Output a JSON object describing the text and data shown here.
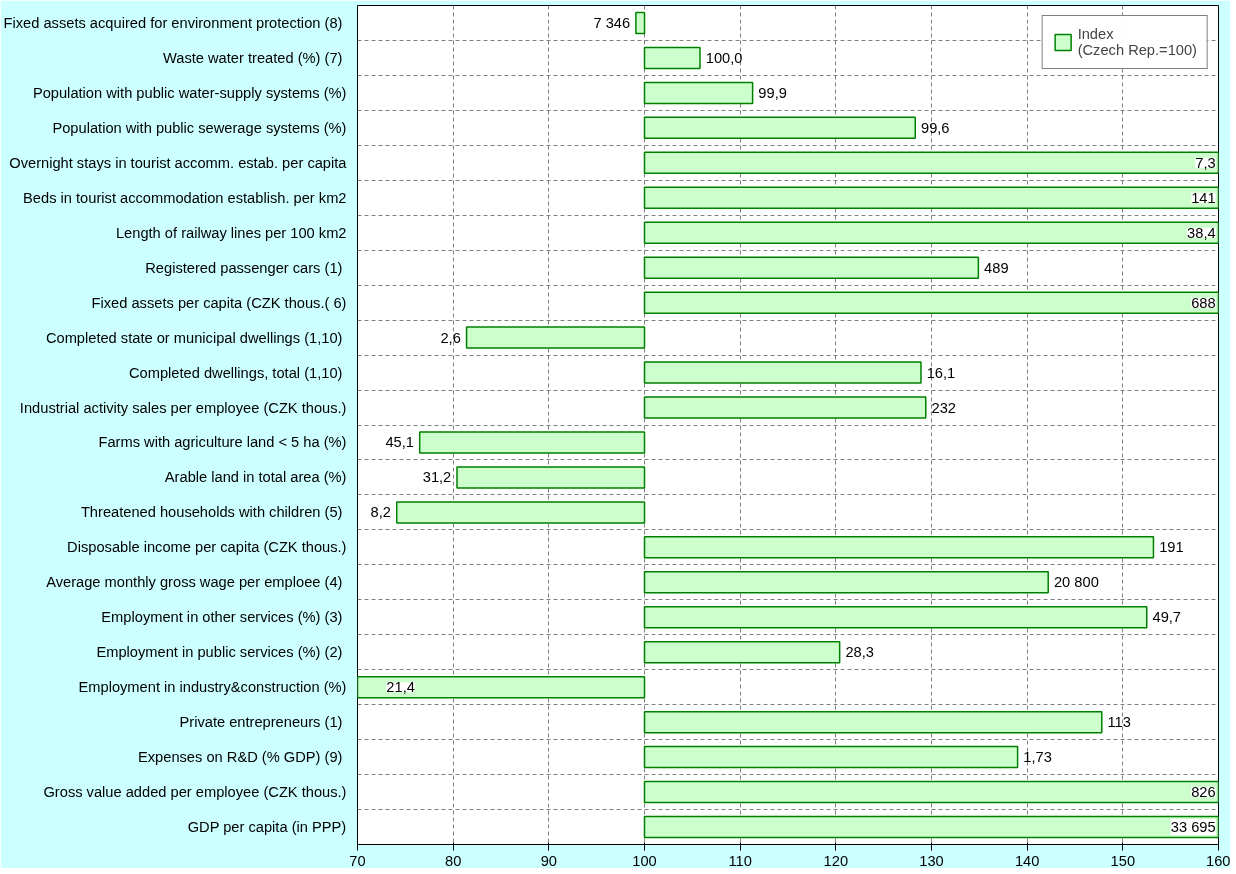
{
  "chart_data": {
    "type": "bar",
    "orientation": "horizontal",
    "categories": [
      "Fixed assets acquired for environment protection  (8)",
      "Waste water treated (%)  (7)",
      "Population with public water-supply systems (%)",
      "Population with public sewerage systems (%)",
      "Overnight stays in tourist accomm. estab. per capita",
      "Beds in tourist accommodation establish. per km2",
      "Length of railway lines per 100 km2",
      "Registered passenger cars  (1)",
      "Fixed assets per capita (CZK thous.( 6)",
      "Completed state or municipal dwellings  (1,10)",
      "Completed dwellings, total  (1,10)",
      "Industrial activity sales per employee (CZK thous.)",
      "Farms with agriculture land < 5 ha (%)",
      "Arable land in total area (%)",
      "Threatened households with children  (5)",
      "Disposable income per capita (CZK thous.)",
      "Average monthly gross wage per emploee  (4)",
      "Employment in other services (%)  (3)",
      "Employment in public services (%)  (2)",
      "Employment in industry&construction (%)",
      "Private entrepreneurs  (1)",
      "Expenses on R&D (% GDP)  (9)",
      "Gross value added per employee (CZK thous.)",
      "GDP per capita (in PPP)"
    ],
    "series": [
      {
        "name": "Index\n(Czech Rep.=100)",
        "color": "#ccffcc",
        "base": [
          100,
          100,
          100,
          100,
          100,
          100,
          100,
          100,
          100,
          100,
          100,
          100,
          100,
          100,
          100,
          100,
          100,
          100,
          100,
          100,
          100,
          100,
          100,
          100
        ],
        "values": [
          -0.9,
          5.8,
          11.3,
          28.3,
          60,
          60,
          60,
          34.9,
          60,
          -18.6,
          28.9,
          29.4,
          -23.5,
          -19.6,
          -25.9,
          53.2,
          42.2,
          52.5,
          20.4,
          -30,
          47.8,
          39.0,
          60,
          60
        ]
      }
    ],
    "value_labels": [
      "7 346",
      "100,0",
      "99,9",
      "99,6",
      "7,3",
      "141",
      "38,4",
      "489",
      "688",
      "2,6",
      "16,1",
      "232",
      "45,1",
      "31,2",
      "8,2",
      "191",
      "20 800",
      "49,7",
      "28,3",
      "21,4",
      "113",
      "1,73",
      "826",
      "33 695"
    ],
    "xlim": [
      70,
      160
    ],
    "xticks": [
      70,
      80,
      90,
      100,
      110,
      120,
      130,
      140,
      150,
      160
    ],
    "grid": true,
    "legend": "top right"
  }
}
